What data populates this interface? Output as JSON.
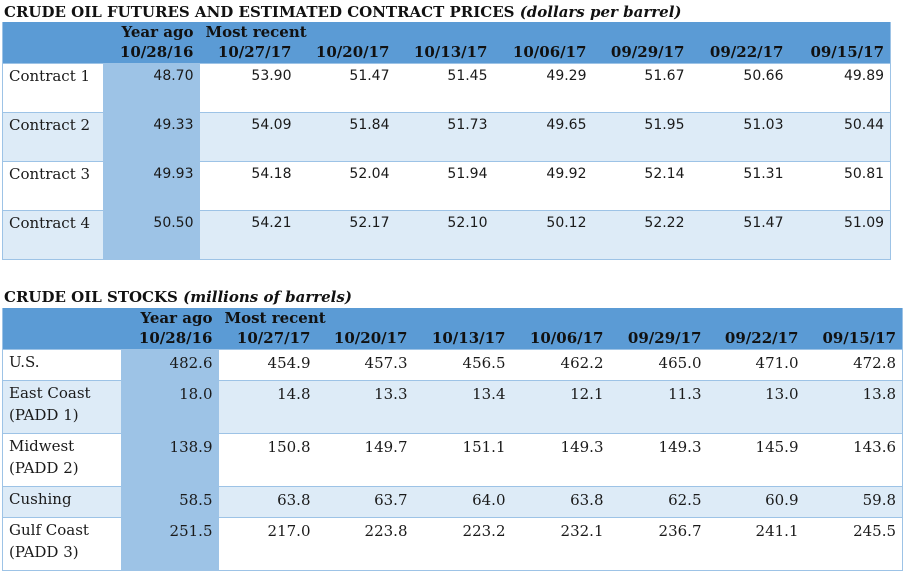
{
  "futures": {
    "title": "CRUDE OIL FUTURES AND ESTIMATED CONTRACT PRICES",
    "unit": "(dollars per barrel)",
    "year_ago_label": "Year ago",
    "most_recent_label": "Most recent",
    "dates": [
      "10/28/16",
      "10/27/17",
      "10/20/17",
      "10/13/17",
      "10/06/17",
      "09/29/17",
      "09/22/17",
      "09/15/17"
    ],
    "rows": [
      {
        "label": "Contract 1",
        "values": [
          "48.70",
          "53.90",
          "51.47",
          "51.45",
          "49.29",
          "51.67",
          "50.66",
          "49.89"
        ]
      },
      {
        "label": "Contract 2",
        "values": [
          "49.33",
          "54.09",
          "51.84",
          "51.73",
          "49.65",
          "51.95",
          "51.03",
          "50.44"
        ]
      },
      {
        "label": "Contract 3",
        "values": [
          "49.93",
          "54.18",
          "52.04",
          "51.94",
          "49.92",
          "52.14",
          "51.31",
          "50.81"
        ]
      },
      {
        "label": "Contract 4",
        "values": [
          "50.50",
          "54.21",
          "52.17",
          "52.10",
          "50.12",
          "52.22",
          "51.47",
          "51.09"
        ]
      }
    ]
  },
  "stocks": {
    "title": "CRUDE OIL STOCKS",
    "unit": "(millions of barrels)",
    "year_ago_label": "Year ago",
    "most_recent_label": "Most recent",
    "dates": [
      "10/28/16",
      "10/27/17",
      "10/20/17",
      "10/13/17",
      "10/06/17",
      "09/29/17",
      "09/22/17",
      "09/15/17"
    ],
    "rows": [
      {
        "label": "U.S.",
        "values": [
          "482.6",
          "454.9",
          "457.3",
          "456.5",
          "462.2",
          "465.0",
          "471.0",
          "472.8"
        ]
      },
      {
        "label": "East Coast (PADD 1)",
        "values": [
          "18.0",
          "14.8",
          "13.3",
          "13.4",
          "12.1",
          "11.3",
          "13.0",
          "13.8"
        ]
      },
      {
        "label": "Midwest (PADD 2)",
        "values": [
          "138.9",
          "150.8",
          "149.7",
          "151.1",
          "149.3",
          "149.3",
          "145.9",
          "143.6"
        ]
      },
      {
        "label": "Cushing",
        "values": [
          "58.5",
          "63.8",
          "63.7",
          "64.0",
          "63.8",
          "62.5",
          "60.9",
          "59.8"
        ]
      },
      {
        "label": "Gulf Coast (PADD 3)",
        "values": [
          "251.5",
          "217.0",
          "223.8",
          "223.2",
          "232.1",
          "236.7",
          "241.1",
          "245.5"
        ]
      }
    ]
  }
}
